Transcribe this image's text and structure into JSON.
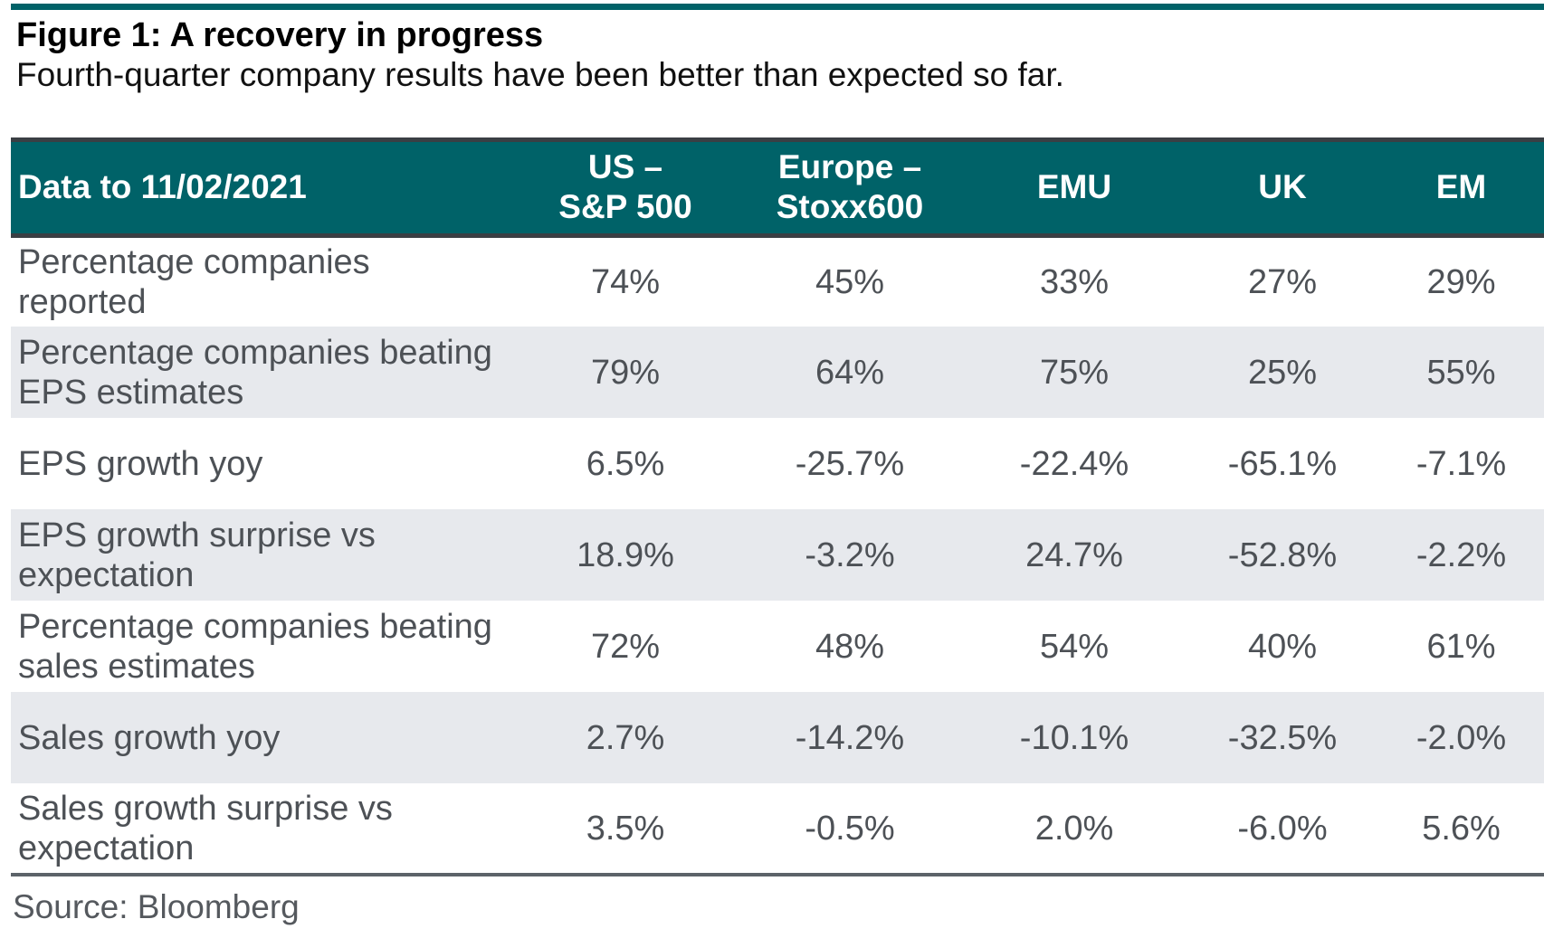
{
  "figure": {
    "title": "Figure 1: A recovery in progress",
    "subtitle": "Fourth-quarter company results have been better than expected so far.",
    "source": "Source: Bloomberg"
  },
  "colors": {
    "header_teal": "#006268",
    "row_shade": "#e7e9ed",
    "body_text": "#4d5156"
  },
  "chart_data": {
    "type": "table",
    "corner_header": "Data to 11/02/2021",
    "columns": [
      {
        "line1": "US –",
        "line2": "S&P 500"
      },
      {
        "line1": "Europe –",
        "line2": "Stoxx600"
      },
      {
        "line1": "EMU",
        "line2": ""
      },
      {
        "line1": "UK",
        "line2": ""
      },
      {
        "line1": "EM",
        "line2": ""
      }
    ],
    "rows": [
      {
        "line1": "Percentage companies",
        "line2": "reported",
        "values": [
          "74%",
          "45%",
          "33%",
          "27%",
          "29%"
        ]
      },
      {
        "line1": "Percentage companies beating",
        "line2": "EPS estimates",
        "values": [
          "79%",
          "64%",
          "75%",
          "25%",
          "55%"
        ]
      },
      {
        "line1": "EPS growth yoy",
        "line2": "",
        "values": [
          "6.5%",
          "-25.7%",
          "-22.4%",
          "-65.1%",
          "-7.1%"
        ]
      },
      {
        "line1": "EPS growth surprise vs",
        "line2": "expectation",
        "values": [
          "18.9%",
          "-3.2%",
          "24.7%",
          "-52.8%",
          "-2.2%"
        ]
      },
      {
        "line1": "Percentage companies beating",
        "line2": "sales estimates",
        "values": [
          "72%",
          "48%",
          "54%",
          "40%",
          "61%"
        ]
      },
      {
        "line1": "Sales growth yoy",
        "line2": "",
        "values": [
          "2.7%",
          "-14.2%",
          "-10.1%",
          "-32.5%",
          "-2.0%"
        ]
      },
      {
        "line1": "Sales growth surprise vs",
        "line2": "expectation",
        "values": [
          "3.5%",
          "-0.5%",
          "2.0%",
          "-6.0%",
          "5.6%"
        ]
      }
    ]
  }
}
